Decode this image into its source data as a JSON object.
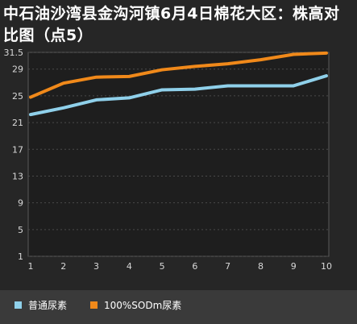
{
  "chart_data": {
    "type": "line",
    "title": "中石油沙湾县金沟河镇6月4日棉花大区：株高对比图（点5）",
    "xlabel": "",
    "ylabel": "",
    "x": [
      1,
      2,
      3,
      4,
      5,
      6,
      7,
      8,
      9,
      10
    ],
    "ylim": [
      1,
      31.5
    ],
    "yticks": [
      1,
      5,
      9,
      13,
      17,
      21,
      25,
      29,
      31.5
    ],
    "yticks_labels": [
      "1",
      "5",
      "9",
      "13",
      "17",
      "21",
      "25",
      "29",
      "31.5"
    ],
    "grid": true,
    "legend_position": "bottom",
    "series": [
      {
        "name": "普通尿素",
        "color": "#8fd0ea",
        "values": [
          22.2,
          23.2,
          24.4,
          24.7,
          25.9,
          26.0,
          26.5,
          26.5,
          26.5,
          28.0
        ]
      },
      {
        "name": "100%SODm尿素",
        "color": "#f0891a",
        "values": [
          24.8,
          26.9,
          27.8,
          27.9,
          28.9,
          29.4,
          29.8,
          30.4,
          31.2,
          31.4
        ]
      }
    ]
  }
}
